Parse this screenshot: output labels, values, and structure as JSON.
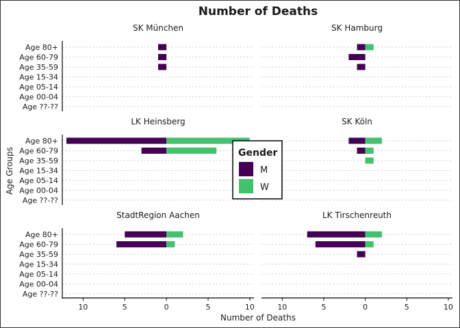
{
  "chart_data": {
    "type": "bar",
    "orientation": "horizontal",
    "mirrored": true,
    "title": "Number of Deaths",
    "xlabel": "Number of Deaths",
    "ylabel": "Age Groups",
    "xlim": [
      -12.5,
      10.5
    ],
    "xticks": [
      -10,
      -5,
      0,
      5,
      10
    ],
    "xtick_labels": [
      "10",
      "5",
      "0",
      "5",
      "10"
    ],
    "grid": "dotted horizontal",
    "categories": [
      "Age 80+",
      "Age 60-79",
      "Age 35-59",
      "Age 15-34",
      "Age 05-14",
      "Age 00-04",
      "Age ??-??"
    ],
    "legend": {
      "title": "Gender",
      "placement": "center",
      "entries": [
        {
          "label": "M",
          "color": "#440154"
        },
        {
          "label": "W",
          "color": "#42c26e"
        }
      ]
    },
    "panels": [
      {
        "name": "SK München",
        "M": [
          1,
          1,
          1,
          0,
          0,
          0,
          0
        ],
        "W": [
          0,
          0,
          0,
          0,
          0,
          0,
          0
        ]
      },
      {
        "name": "SK Hamburg",
        "M": [
          1,
          2,
          1,
          0,
          0,
          0,
          0
        ],
        "W": [
          1,
          0,
          0,
          0,
          0,
          0,
          0
        ]
      },
      {
        "name": "LK Heinsberg",
        "M": [
          12,
          3,
          0,
          0,
          0,
          0,
          0
        ],
        "W": [
          10,
          6,
          0,
          0,
          0,
          0,
          0
        ]
      },
      {
        "name": "SK Köln",
        "M": [
          2,
          1,
          0,
          0,
          0,
          0,
          0
        ],
        "W": [
          2,
          1,
          1,
          0,
          0,
          0,
          0
        ]
      },
      {
        "name": "StadtRegion Aachen",
        "M": [
          5,
          6,
          0,
          0,
          0,
          0,
          0
        ],
        "W": [
          2,
          1,
          0,
          0,
          0,
          0,
          0
        ]
      },
      {
        "name": "LK Tirschenreuth",
        "M": [
          7,
          6,
          1,
          0,
          0,
          0,
          0
        ],
        "W": [
          2,
          1,
          0,
          0,
          0,
          0,
          0
        ]
      }
    ]
  }
}
